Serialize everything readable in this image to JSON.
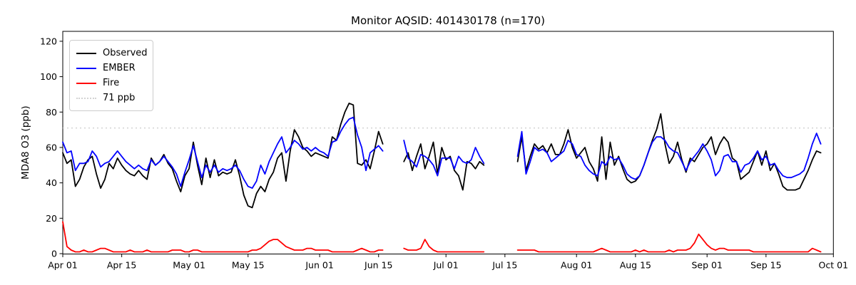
{
  "title": "Monitor AQSID: 401430178 (n=170)",
  "legend": {
    "items": [
      {
        "label": "Observed",
        "color": "#000000",
        "style": "solid"
      },
      {
        "label": "EMBER",
        "color": "#0000ff",
        "style": "solid"
      },
      {
        "label": "Fire",
        "color": "#ff0000",
        "style": "solid"
      },
      {
        "label": "71 ppb",
        "color": "#d3d3d3",
        "style": "dotted"
      }
    ]
  },
  "chart_data": {
    "type": "line",
    "title": "Monitor AQSID: 401430178 (n=170)",
    "xlabel": "",
    "ylabel": "MDA8 O3 (ppb)",
    "ylim": [
      0,
      125
    ],
    "yticks": [
      0,
      20,
      40,
      60,
      80,
      100,
      120
    ],
    "xtick_labels": [
      "Apr 01",
      "Apr 15",
      "May 01",
      "May 15",
      "Jun 01",
      "Jun 15",
      "Jul 01",
      "Jul 15",
      "Aug 01",
      "Aug 15",
      "Sep 01",
      "Sep 15",
      "Oct 01"
    ],
    "xtick_days": [
      0,
      14,
      30,
      44,
      61,
      75,
      91,
      105,
      122,
      136,
      153,
      167,
      183
    ],
    "x_range_days": [
      0,
      183
    ],
    "grid": false,
    "legend_position": "upper left",
    "n_points": 170,
    "reference_line": {
      "label": "71 ppb",
      "value": 71,
      "color": "#d3d3d3",
      "style": "dotted"
    },
    "series": [
      {
        "name": "Observed",
        "color": "#000000",
        "segments": [
          {
            "start_day": 0,
            "start_date": "Apr 01",
            "values": [
              57,
              51,
              53,
              38,
              42,
              49,
              53,
              55,
              45,
              37,
              42,
              51,
              48,
              54,
              50,
              47,
              45,
              44,
              47,
              44,
              42,
              54,
              50,
              52,
              56,
              51,
              48,
              41,
              35,
              44,
              48,
              63,
              50,
              39,
              54,
              43,
              53,
              44,
              46,
              45,
              46,
              53,
              44,
              33,
              27,
              26,
              34,
              38,
              35,
              42,
              46,
              54,
              57,
              41,
              58,
              70,
              66,
              60,
              58,
              55,
              57,
              56,
              55,
              54,
              66,
              64,
              73,
              80,
              85,
              84,
              51,
              50,
              53,
              48,
              58,
              69,
              62
            ]
          },
          {
            "start_day": 81,
            "start_date": "Jun 21",
            "values": [
              52,
              57,
              47,
              55,
              62,
              48,
              55,
              63,
              45,
              60,
              53,
              55,
              47,
              44,
              36,
              52,
              51,
              48,
              52,
              50
            ]
          },
          {
            "start_day": 108,
            "start_date": "Jul 18",
            "values": [
              52,
              66,
              47,
              55,
              62,
              59,
              61,
              57,
              62,
              56,
              56,
              62,
              70,
              60,
              54,
              57,
              60,
              52,
              48,
              41,
              66,
              42,
              63,
              50,
              55,
              48,
              42,
              40,
              41,
              44,
              50,
              57,
              64,
              70,
              79,
              62,
              51,
              55,
              63,
              53,
              46,
              54,
              52,
              56,
              60,
              62,
              66,
              56,
              62,
              66,
              63,
              54,
              52,
              42,
              44,
              46,
              52,
              58,
              50,
              58,
              47,
              51,
              45,
              38,
              36,
              36,
              36,
              37,
              42,
              47,
              53,
              58,
              57
            ]
          }
        ]
      },
      {
        "name": "EMBER",
        "color": "#0000ff",
        "segments": [
          {
            "start_day": 0,
            "start_date": "Apr 01",
            "values": [
              63,
              57,
              58,
              47,
              51,
              51,
              52,
              58,
              55,
              49,
              51,
              52,
              55,
              58,
              55,
              52,
              50,
              48,
              50,
              48,
              47,
              53,
              50,
              52,
              55,
              52,
              49,
              45,
              38,
              46,
              53,
              61,
              52,
              43,
              50,
              46,
              50,
              46,
              48,
              47,
              48,
              50,
              47,
              42,
              38,
              37,
              41,
              50,
              45,
              52,
              57,
              62,
              66,
              57,
              60,
              64,
              62,
              59,
              60,
              58,
              60,
              58,
              57,
              55,
              63,
              64,
              69,
              73,
              76,
              77,
              67,
              60,
              47,
              57,
              59,
              61,
              58
            ]
          },
          {
            "start_day": 81,
            "start_date": "Jun 21",
            "values": [
              64,
              54,
              52,
              49,
              56,
              55,
              53,
              50,
              44,
              54,
              54,
              54,
              48,
              55,
              52,
              51,
              53,
              60,
              55,
              51
            ]
          },
          {
            "start_day": 108,
            "start_date": "Jul 18",
            "values": [
              55,
              69,
              45,
              52,
              60,
              58,
              59,
              57,
              52,
              54,
              56,
              58,
              64,
              62,
              56,
              55,
              50,
              47,
              45,
              44,
              52,
              50,
              55,
              53,
              54,
              50,
              45,
              43,
              42,
              44,
              50,
              57,
              63,
              66,
              66,
              64,
              60,
              58,
              57,
              52,
              47,
              52,
              55,
              58,
              62,
              58,
              53,
              44,
              47,
              55,
              56,
              52,
              52,
              46,
              50,
              51,
              54,
              58,
              53,
              55,
              50,
              51,
              47,
              44,
              43,
              43,
              44,
              45,
              47,
              54,
              62,
              68,
              62
            ]
          }
        ]
      },
      {
        "name": "Fire",
        "color": "#ff0000",
        "segments": [
          {
            "start_day": 0,
            "start_date": "Apr 01",
            "values": [
              18,
              4,
              2,
              1,
              1,
              2,
              1,
              1,
              2,
              3,
              3,
              2,
              1,
              1,
              1,
              1,
              2,
              1,
              1,
              1,
              2,
              1,
              1,
              1,
              1,
              1,
              2,
              2,
              2,
              1,
              1,
              2,
              2,
              1,
              1,
              1,
              1,
              1,
              1,
              1,
              1,
              1,
              1,
              1,
              1,
              2,
              2,
              3,
              5,
              7,
              8,
              8,
              6,
              4,
              3,
              2,
              2,
              2,
              3,
              3,
              2,
              2,
              2,
              2,
              1,
              1,
              1,
              1,
              1,
              1,
              2,
              3,
              2,
              1,
              1,
              2,
              2
            ]
          },
          {
            "start_day": 81,
            "start_date": "Jun 21",
            "values": [
              3,
              2,
              2,
              2,
              3,
              8,
              4,
              2,
              1,
              1,
              1,
              1,
              1,
              1,
              1,
              1,
              1,
              1,
              1,
              1
            ]
          },
          {
            "start_day": 108,
            "start_date": "Jul 18",
            "values": [
              2,
              2,
              2,
              2,
              2,
              1,
              1,
              1,
              1,
              1,
              1,
              1,
              1,
              1,
              1,
              1,
              1,
              1,
              1,
              2,
              3,
              2,
              1,
              1,
              1,
              1,
              1,
              1,
              2,
              1,
              2,
              1,
              1,
              1,
              1,
              1,
              2,
              1,
              2,
              2,
              2,
              3,
              6,
              11,
              8,
              5,
              3,
              2,
              3,
              3,
              2,
              2,
              2,
              2,
              2,
              2,
              1,
              1,
              1,
              1,
              1,
              1,
              1,
              1,
              1,
              1,
              1,
              1,
              1,
              1,
              3,
              2,
              1
            ]
          }
        ]
      }
    ]
  }
}
